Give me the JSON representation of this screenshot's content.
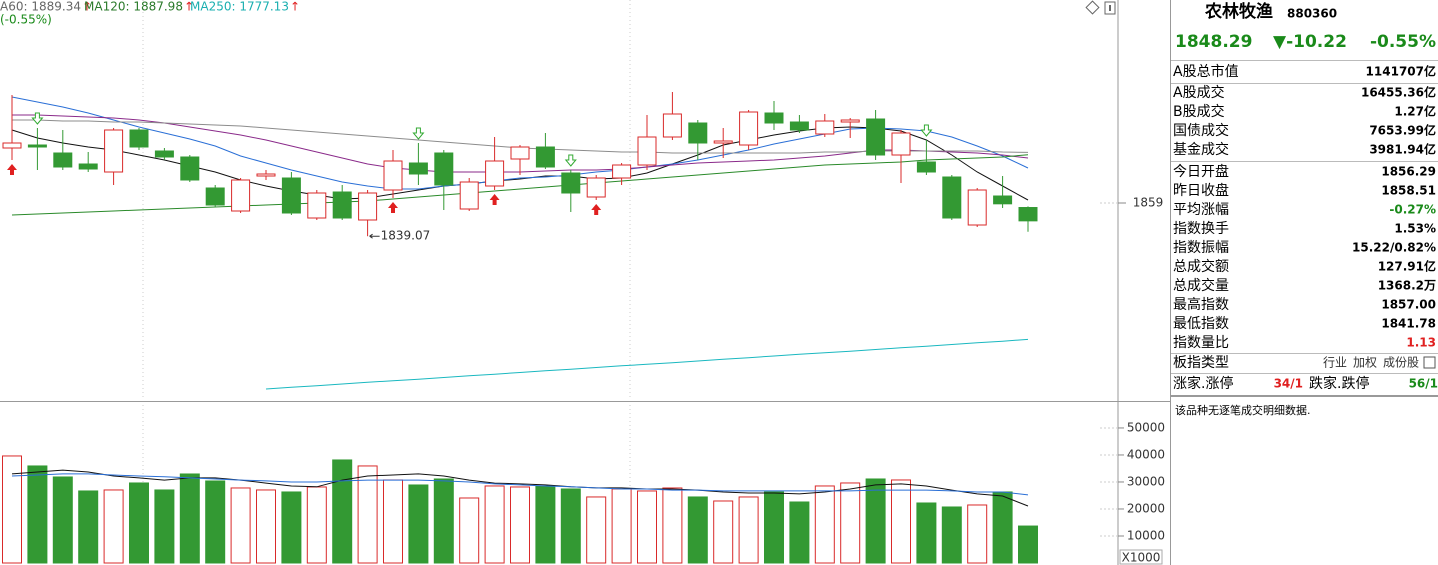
{
  "header": {
    "ma_legend": [
      {
        "text": "A60: 1889.34",
        "arrow": "↑",
        "color": "#666666"
      },
      {
        "text": "MA120: 1887.98",
        "arrow": "↑",
        "color": "#2a7a2a"
      },
      {
        "text": "MA250: 1777.13",
        "arrow": "↑",
        "color": "#1aafb0"
      }
    ],
    "change": "(-0.55%)"
  },
  "chart_data": [
    {
      "type": "candlestick",
      "up_color": "#d92a2a",
      "down_color": "#339933",
      "categories": [
        null,
        null,
        null,
        null,
        null,
        null,
        null,
        null,
        null,
        null,
        null,
        null,
        null,
        null,
        null,
        null,
        null,
        null,
        null,
        null,
        null,
        null,
        null,
        null,
        null,
        null,
        null,
        null,
        null,
        null,
        null,
        null,
        null,
        null,
        null,
        null,
        null,
        null,
        null,
        null,
        null
      ],
      "open": [
        1892.0,
        1893.8,
        1889.0,
        1882.4,
        1877.6,
        1902.8,
        1890.2,
        1886.6,
        1868.0,
        1854.2,
        1875.2,
        1874.0,
        1850.0,
        1865.6,
        1848.8,
        1866.8,
        1883.0,
        1889.0,
        1855.4,
        1869.2,
        1885.4,
        1892.6,
        1877.0,
        1862.6,
        1874.0,
        1881.8,
        1898.6,
        1907.0,
        1895.0,
        1893.8,
        1913.0,
        1907.6,
        1900.4,
        1907.6,
        1909.4,
        1887.8,
        1883.6,
        1874.6,
        1845.8,
        1863.2,
        1856.29
      ],
      "high": [
        1923.8,
        1904.0,
        1902.8,
        1889.6,
        1904.0,
        1904.0,
        1892.0,
        1887.8,
        1869.8,
        1874.0,
        1878.8,
        1877.6,
        1866.8,
        1869.8,
        1866.8,
        1890.8,
        1895.0,
        1890.8,
        1874.0,
        1898.6,
        1893.8,
        1901.0,
        1878.8,
        1875.8,
        1883.0,
        1911.8,
        1925.6,
        1908.8,
        1904.0,
        1914.8,
        1920.2,
        1911.8,
        1912.4,
        1910.0,
        1914.8,
        1902.8,
        1896.8,
        1875.8,
        1868.0,
        1875.2,
        1857.0
      ],
      "low": [
        1884.8,
        1878.8,
        1878.8,
        1877.6,
        1869.8,
        1890.8,
        1884.8,
        1871.6,
        1856.6,
        1853.0,
        1872.8,
        1851.8,
        1848.8,
        1848.8,
        1839.07,
        1862.0,
        1869.8,
        1854.8,
        1854.2,
        1866.8,
        1875.8,
        1879.4,
        1853.6,
        1860.8,
        1869.8,
        1878.8,
        1896.8,
        1884.8,
        1886.0,
        1890.8,
        1902.8,
        1901.0,
        1898.6,
        1898.0,
        1884.8,
        1871.0,
        1875.8,
        1848.8,
        1844.6,
        1856.0,
        1841.78
      ],
      "close": [
        1895.0,
        1892.6,
        1880.6,
        1879.4,
        1902.8,
        1892.6,
        1886.6,
        1872.8,
        1857.8,
        1872.8,
        1876.4,
        1853.0,
        1865.0,
        1850.0,
        1865.0,
        1884.2,
        1876.4,
        1869.8,
        1871.6,
        1884.2,
        1892.6,
        1880.6,
        1865.0,
        1874.0,
        1881.8,
        1898.6,
        1912.4,
        1895.0,
        1896.2,
        1913.6,
        1907.0,
        1902.8,
        1908.2,
        1908.8,
        1887.8,
        1901.0,
        1877.6,
        1850.0,
        1866.8,
        1858.51,
        1848.29
      ],
      "lines": [
        {
          "color": "#111111",
          "values": [
            1902.8,
            1898.0,
            1895.0,
            1892.6,
            1890.8,
            1887.8,
            1884.8,
            1881.2,
            1877.6,
            1872.8,
            1869.2,
            1866.2,
            1863.8,
            1861.4,
            1862.0,
            1864.4,
            1866.8,
            1869.2,
            1870.4,
            1872.2,
            1873.4,
            1875.2,
            1875.2,
            1873.4,
            1874.0,
            1877.0,
            1882.4,
            1887.8,
            1893.8,
            1896.8,
            1899.8,
            1902.2,
            1904.0,
            1904.6,
            1904.0,
            1902.2,
            1896.8,
            1887.8,
            1877.6,
            1869.2,
            1860.8
          ]
        },
        {
          "color": "#2a6fd6",
          "values": [
            1922.6,
            1919.6,
            1916.6,
            1913.0,
            1908.8,
            1904.6,
            1901.0,
            1897.4,
            1893.2,
            1887.2,
            1883.0,
            1878.8,
            1875.2,
            1871.6,
            1869.2,
            1867.4,
            1867.4,
            1869.2,
            1870.4,
            1872.2,
            1874.0,
            1874.6,
            1875.8,
            1877.6,
            1878.8,
            1880.6,
            1882.4,
            1884.8,
            1887.8,
            1890.8,
            1894.4,
            1897.4,
            1900.4,
            1903.4,
            1904.0,
            1903.4,
            1902.2,
            1898.6,
            1893.2,
            1887.2,
            1880.0
          ]
        },
        {
          "color": "#8a2a8a",
          "values": [
            1911.8,
            1911.8,
            1911.2,
            1910.6,
            1910.0,
            1908.8,
            1907.0,
            1904.6,
            1902.2,
            1899.8,
            1896.8,
            1893.2,
            1889.6,
            1886.0,
            1882.4,
            1880.0,
            1878.8,
            1877.6,
            1877.6,
            1877.6,
            1877.6,
            1878.2,
            1878.8,
            1878.8,
            1879.4,
            1880.6,
            1881.8,
            1883.0,
            1883.6,
            1884.2,
            1884.8,
            1886.0,
            1887.2,
            1889.0,
            1890.8,
            1890.8,
            1890.2,
            1889.6,
            1889.0,
            1887.8,
            1886.0
          ]
        },
        {
          "color": "#8c8c8c",
          "values": [
            1908.8,
            1908.8,
            1908.2,
            1908.2,
            1907.6,
            1907.6,
            1907.0,
            1906.4,
            1905.8,
            1905.2,
            1904.0,
            1902.8,
            1901.6,
            1900.4,
            1899.2,
            1898.0,
            1896.8,
            1895.6,
            1894.4,
            1893.2,
            1892.0,
            1891.4,
            1890.8,
            1890.2,
            1889.6,
            1889.6,
            1889.0,
            1889.0,
            1889.0,
            1889.0,
            1889.0,
            1889.0,
            1889.6,
            1889.6,
            1890.2,
            1890.2,
            1890.2,
            1890.2,
            1890.2,
            1889.6,
            1889.34
          ]
        },
        {
          "color": "#2a8a2a",
          "values": [
            1851.8,
            1852.4,
            1853.0,
            1853.6,
            1854.2,
            1854.8,
            1855.4,
            1856.0,
            1856.6,
            1857.2,
            1857.8,
            1858.4,
            1859.0,
            1859.6,
            1860.2,
            1861.4,
            1862.6,
            1863.8,
            1865.0,
            1866.2,
            1867.4,
            1868.6,
            1869.8,
            1871.0,
            1872.2,
            1873.4,
            1874.6,
            1875.8,
            1877.0,
            1878.2,
            1879.4,
            1880.6,
            1881.8,
            1882.4,
            1883.0,
            1883.6,
            1884.8,
            1885.4,
            1886.0,
            1886.6,
            1887.98
          ]
        },
        {
          "color": "#1ab8c0",
          "values": [
            null,
            null,
            null,
            null,
            null,
            null,
            null,
            null,
            null,
            null,
            1747.4,
            1748.4,
            1749.4,
            1750.4,
            1751.4,
            1752.4,
            1753.3,
            1754.3,
            1755.3,
            1756.3,
            1757.3,
            1758.3,
            1759.3,
            1760.3,
            1761.3,
            1762.2,
            1763.2,
            1764.2,
            1765.2,
            1766.2,
            1767.2,
            1768.2,
            1769.2,
            1770.1,
            1771.1,
            1772.1,
            1773.1,
            1774.1,
            1775.1,
            1776.1,
            1777.13
          ]
        }
      ],
      "up_signals": [
        0,
        15,
        19,
        23
      ],
      "down_signals": [
        1,
        16,
        22,
        36
      ],
      "annotation": {
        "text": "1839.07",
        "index": 14
      },
      "ylim": [
        1740.8,
        1980.8
      ],
      "yticks": [
        1859
      ]
    },
    {
      "type": "bar",
      "values": [
        39630,
        35930,
        31850,
        26670,
        27040,
        29630,
        27040,
        32960,
        30370,
        27780,
        27040,
        26300,
        28150,
        38150,
        35930,
        30740,
        28890,
        31110,
        24070,
        28520,
        28150,
        28520,
        27410,
        24450,
        27410,
        26670,
        27780,
        24450,
        22960,
        24450,
        26300,
        22590,
        28520,
        29630,
        31110,
        30740,
        22220,
        20740,
        21480,
        26300,
        13682
      ],
      "lines": [
        {
          "color": "#111111",
          "values": [
            33000,
            33700,
            34400,
            33700,
            32200,
            31500,
            30700,
            31500,
            31500,
            30700,
            29600,
            28500,
            28200,
            30700,
            32200,
            32600,
            33000,
            32200,
            30700,
            29600,
            29300,
            28900,
            28200,
            27800,
            27800,
            27400,
            27400,
            27000,
            26300,
            25900,
            25900,
            25600,
            26300,
            27400,
            28900,
            29300,
            28500,
            27000,
            25600,
            24800,
            21100
          ]
        },
        {
          "color": "#2a6fd6",
          "values": [
            32200,
            32600,
            33000,
            33000,
            32600,
            32200,
            31900,
            31500,
            31100,
            30700,
            30400,
            30000,
            30000,
            30400,
            30700,
            30700,
            30700,
            30400,
            30000,
            29300,
            28900,
            28500,
            28200,
            27800,
            27400,
            27400,
            27000,
            27000,
            26700,
            26700,
            26700,
            26700,
            26700,
            26700,
            27000,
            27000,
            27000,
            26700,
            26300,
            26300,
            25200
          ]
        }
      ],
      "ylim": [
        0,
        58500
      ],
      "yticks": [
        10000,
        20000,
        30000,
        40000,
        50000
      ],
      "unit_label": "X1000"
    }
  ],
  "panel": {
    "name": "农林牧渔",
    "code": "880360",
    "price": "1848.29",
    "change": "▼-10.22",
    "change_pct": "-0.55%",
    "market_cap": {
      "label": "A股总市值",
      "value": "1141707亿"
    },
    "turnover_rows": [
      {
        "label": "A股成交",
        "value": "16455.36亿"
      },
      {
        "label": "B股成交",
        "value": "1.27亿"
      },
      {
        "label": "国债成交",
        "value": "7653.99亿"
      },
      {
        "label": "基金成交",
        "value": "3981.94亿"
      }
    ],
    "stat_rows": [
      {
        "label": "今日开盘",
        "value": "1856.29"
      },
      {
        "label": "昨日收盘",
        "value": "1858.51"
      },
      {
        "label": "平均涨幅",
        "value": "-0.27%",
        "color": "#1a8a1a"
      },
      {
        "label": "指数换手",
        "value": "1.53%"
      },
      {
        "label": "指数振幅",
        "value": "15.22/0.82%"
      },
      {
        "label": "总成交额",
        "value": "127.91亿"
      },
      {
        "label": "总成交量",
        "value": "1368.2万"
      },
      {
        "label": "最高指数",
        "value": "1857.00"
      },
      {
        "label": "最低指数",
        "value": "1841.78"
      },
      {
        "label": "指数量比",
        "value": "1.13",
        "color": "#e02020"
      }
    ],
    "index_type": {
      "label": "板指类型",
      "values": [
        "行业",
        "加权",
        "成份股"
      ]
    },
    "breadth": [
      {
        "label": "涨家.涨停",
        "value": "34/1",
        "color": "#e02020"
      },
      {
        "label": "跌家.跌停",
        "value": "56/1",
        "color": "#1a8a1a"
      }
    ],
    "note": "该品种无逐笔成交明细数据."
  }
}
